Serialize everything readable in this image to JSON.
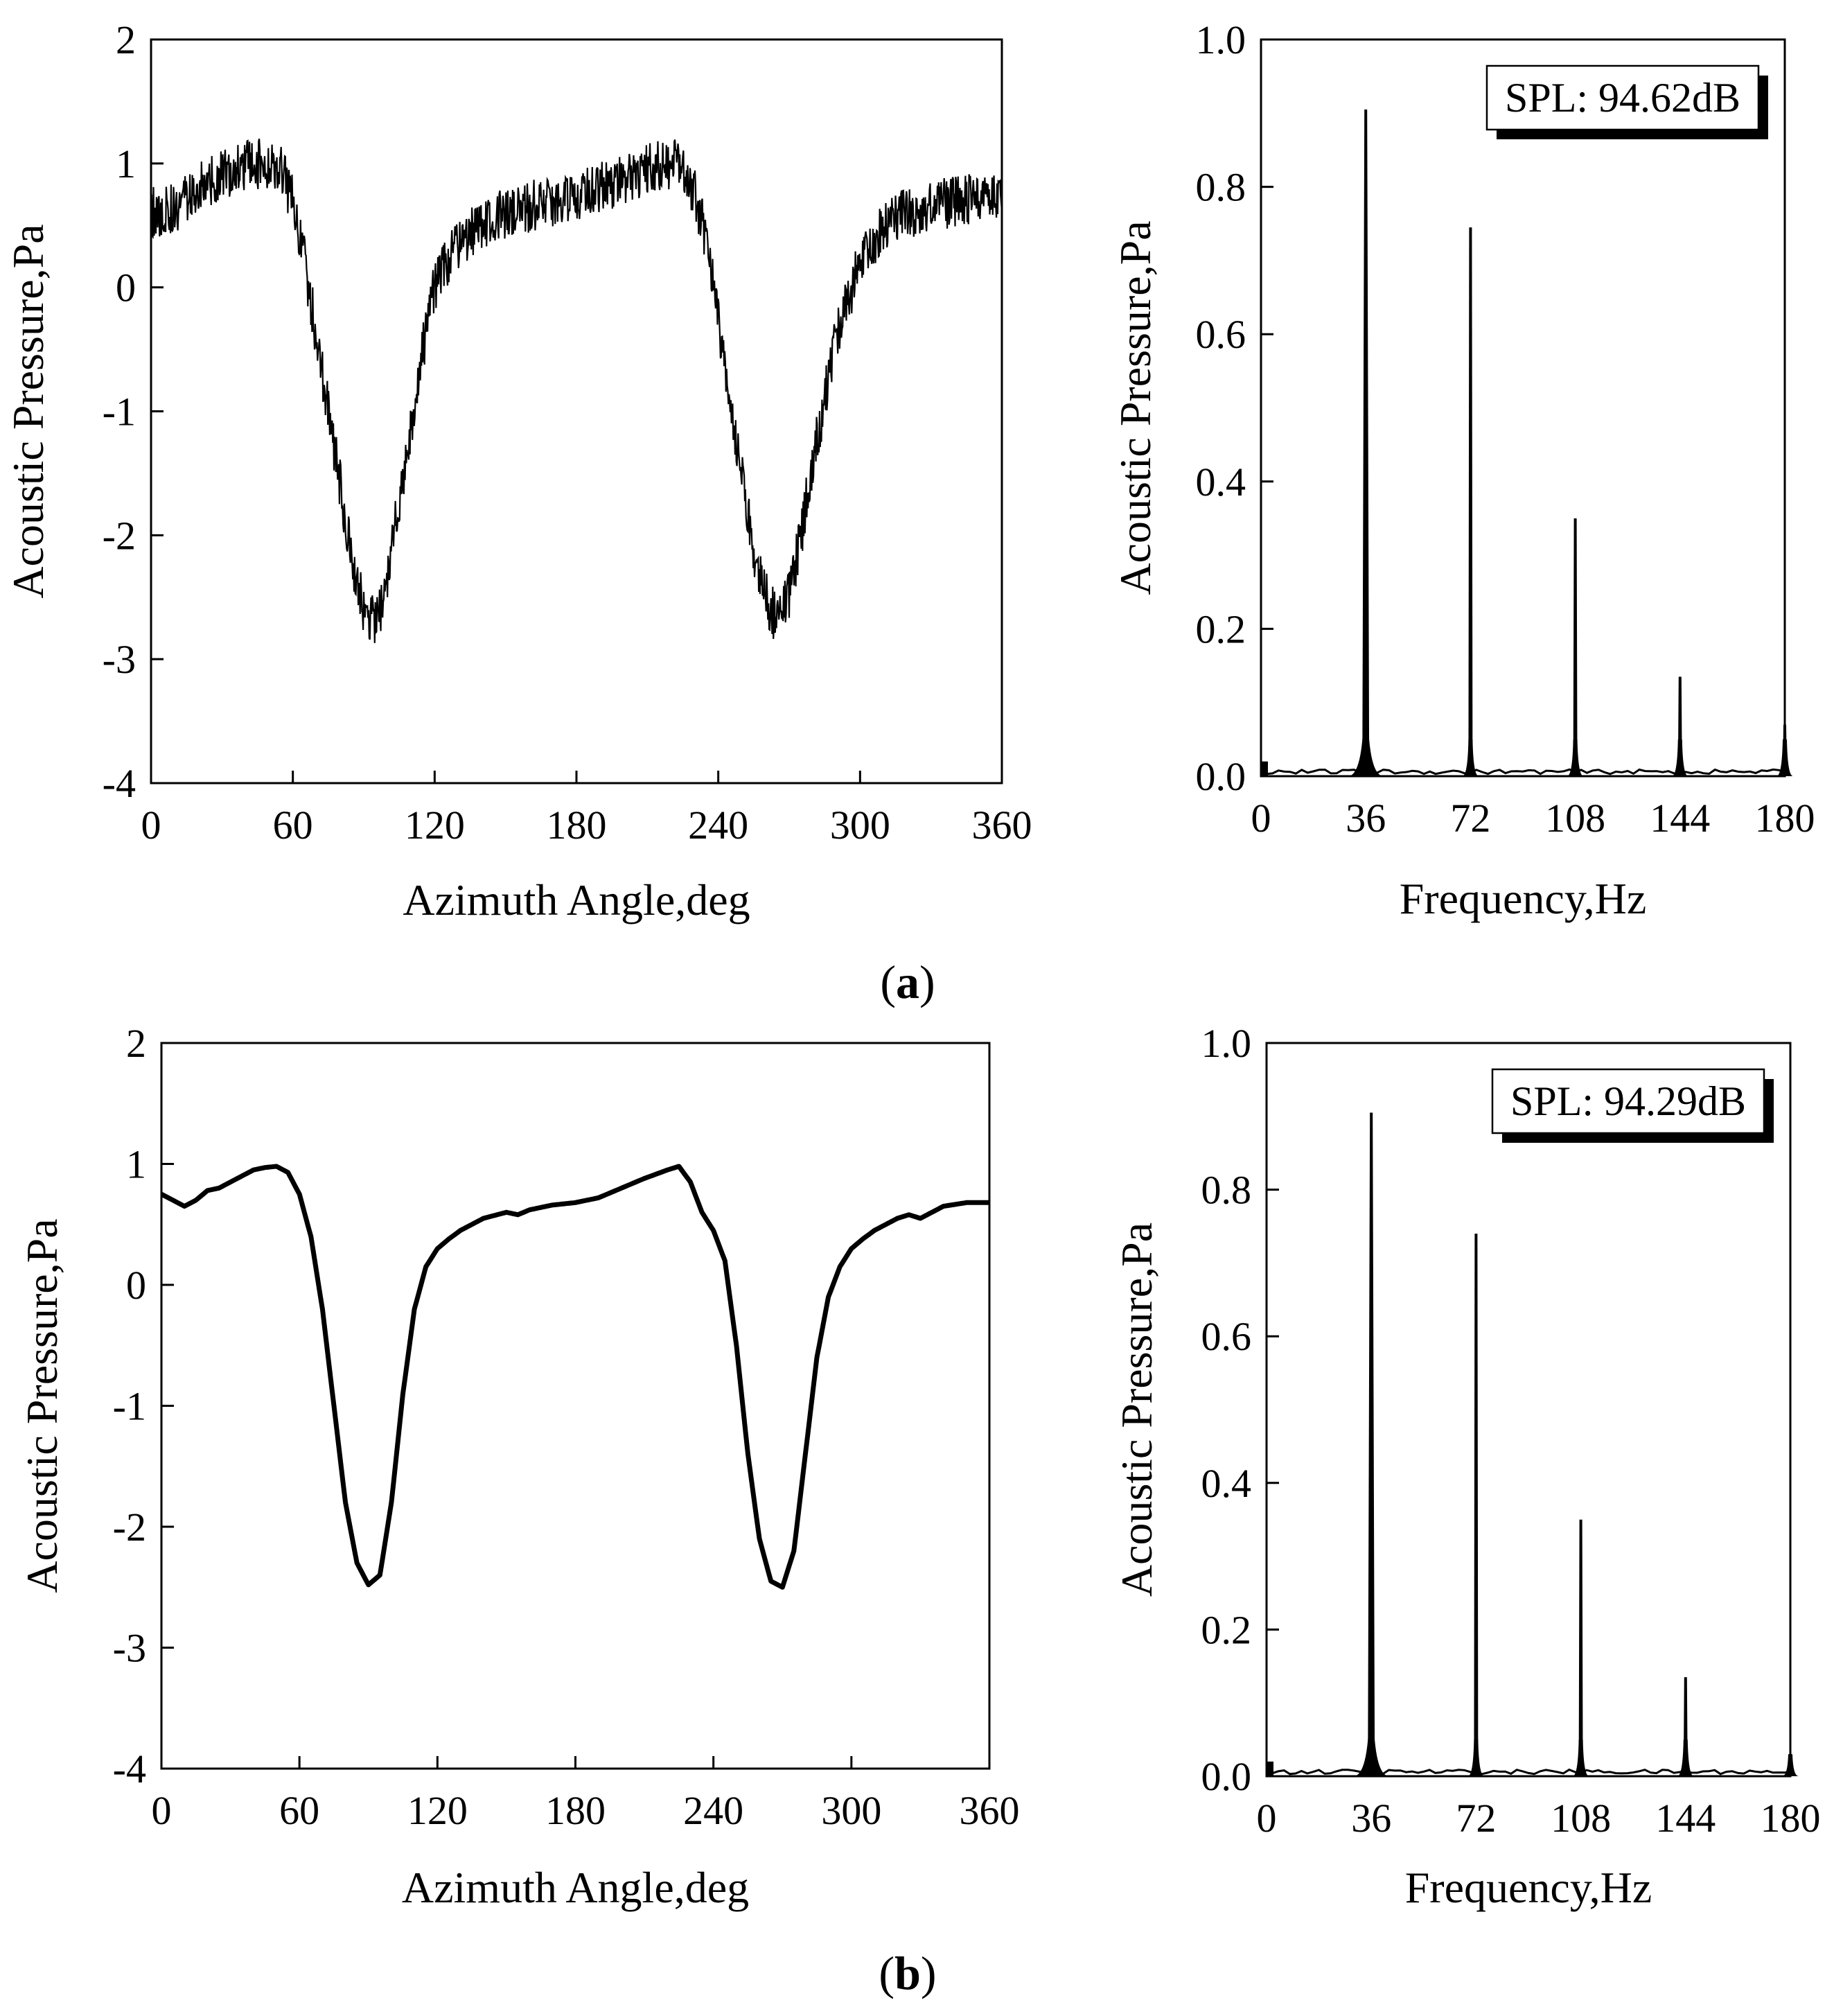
{
  "figure": {
    "panel_labels": [
      {
        "open": "(",
        "letter": "a",
        "close": ")"
      },
      {
        "open": "(",
        "letter": "b",
        "close": ")"
      }
    ]
  },
  "chart_data": [
    {
      "id": "a-time",
      "type": "line",
      "title": "",
      "xlabel": "Azimuth Angle,deg",
      "ylabel": "Acoustic Pressure,Pa",
      "xlim": [
        0,
        360
      ],
      "ylim": [
        -4,
        2
      ],
      "xticks": [
        0,
        60,
        120,
        180,
        240,
        300,
        360
      ],
      "yticks": [
        -4,
        -3,
        -2,
        -1,
        0,
        1,
        2
      ],
      "x_tick_labels": [
        "0",
        "60",
        "120",
        "180",
        "240",
        "300",
        "360"
      ],
      "y_tick_labels": [
        "-4",
        "-3",
        "-2",
        "-1",
        "0",
        "1",
        "2"
      ],
      "grid": false,
      "noisy": true,
      "series": [
        {
          "name": "acoustic pressure",
          "x": [
            0,
            5,
            10,
            15,
            20,
            25,
            30,
            35,
            40,
            45,
            50,
            55,
            60,
            65,
            70,
            75,
            80,
            85,
            90,
            95,
            100,
            105,
            110,
            115,
            120,
            125,
            130,
            140,
            150,
            160,
            170,
            180,
            190,
            200,
            210,
            220,
            225,
            230,
            235,
            240,
            245,
            250,
            255,
            260,
            265,
            270,
            275,
            280,
            285,
            290,
            295,
            300,
            305,
            310,
            320,
            330,
            340,
            350,
            360
          ],
          "values": [
            0.6,
            0.62,
            0.65,
            0.72,
            0.8,
            0.85,
            0.9,
            0.95,
            1.0,
            1.0,
            1.0,
            0.95,
            0.7,
            0.2,
            -0.4,
            -1.0,
            -1.6,
            -2.2,
            -2.6,
            -2.7,
            -2.4,
            -1.7,
            -1.1,
            -0.5,
            0.0,
            0.2,
            0.35,
            0.5,
            0.6,
            0.65,
            0.7,
            0.75,
            0.8,
            0.88,
            0.95,
            1.0,
            0.95,
            0.75,
            0.4,
            -0.3,
            -0.9,
            -1.5,
            -2.1,
            -2.5,
            -2.7,
            -2.5,
            -2.0,
            -1.4,
            -0.9,
            -0.4,
            -0.1,
            0.2,
            0.35,
            0.5,
            0.6,
            0.65,
            0.7,
            0.72,
            0.75
          ]
        }
      ]
    },
    {
      "id": "a-freq",
      "type": "line",
      "title": "",
      "xlabel": "Frequency,Hz",
      "ylabel": "Acoustic Pressure,Pa",
      "xlim": [
        0,
        180
      ],
      "ylim": [
        0,
        1.0
      ],
      "xticks": [
        0,
        36,
        72,
        108,
        144,
        180
      ],
      "yticks": [
        0.0,
        0.2,
        0.4,
        0.6,
        0.8,
        1.0
      ],
      "x_tick_labels": [
        "0",
        "36",
        "72",
        "108",
        144,
        "180"
      ],
      "y_tick_labels": [
        "0.0",
        "0.2",
        "0.4",
        "0.6",
        "0.8",
        "1.0"
      ],
      "grid": false,
      "annotation": {
        "text": "SPL: 94.62dB",
        "position": "top-right"
      },
      "peaks": [
        {
          "x": 36,
          "value": 0.905,
          "wide": true
        },
        {
          "x": 72,
          "value": 0.745,
          "wide": false
        },
        {
          "x": 108,
          "value": 0.35,
          "wide": false
        },
        {
          "x": 144,
          "value": 0.135,
          "wide": false
        },
        {
          "x": 180,
          "value": 0.07,
          "wide": false
        }
      ]
    },
    {
      "id": "b-time",
      "type": "line",
      "title": "",
      "xlabel": "Azimuth Angle,deg",
      "ylabel": "Acoustic Pressure,Pa",
      "xlim": [
        0,
        360
      ],
      "ylim": [
        -4,
        2
      ],
      "xticks": [
        0,
        60,
        120,
        180,
        240,
        300,
        360
      ],
      "yticks": [
        -4,
        -3,
        -2,
        -1,
        0,
        1,
        2
      ],
      "x_tick_labels": [
        "0",
        "60",
        "120",
        "180",
        "240",
        "300",
        "360"
      ],
      "y_tick_labels": [
        "-4",
        "-3",
        "-2",
        "-1",
        "0",
        "1",
        "2"
      ],
      "grid": false,
      "noisy": false,
      "series": [
        {
          "name": "acoustic pressure",
          "x": [
            0,
            5,
            10,
            15,
            20,
            25,
            30,
            35,
            40,
            45,
            50,
            55,
            60,
            65,
            70,
            75,
            80,
            85,
            90,
            95,
            100,
            105,
            110,
            115,
            120,
            125,
            130,
            140,
            150,
            155,
            160,
            170,
            180,
            190,
            200,
            210,
            220,
            225,
            230,
            235,
            240,
            245,
            250,
            255,
            260,
            265,
            270,
            275,
            280,
            285,
            290,
            295,
            300,
            305,
            310,
            320,
            325,
            330,
            335,
            340,
            350,
            360
          ],
          "values": [
            0.75,
            0.7,
            0.65,
            0.7,
            0.78,
            0.8,
            0.85,
            0.9,
            0.95,
            0.97,
            0.98,
            0.93,
            0.75,
            0.4,
            -0.2,
            -1.0,
            -1.8,
            -2.3,
            -2.48,
            -2.4,
            -1.8,
            -0.9,
            -0.2,
            0.15,
            0.3,
            0.38,
            0.45,
            0.55,
            0.6,
            0.58,
            0.62,
            0.66,
            0.68,
            0.72,
            0.8,
            0.88,
            0.95,
            0.98,
            0.85,
            0.6,
            0.45,
            0.2,
            -0.5,
            -1.4,
            -2.1,
            -2.45,
            -2.5,
            -2.2,
            -1.4,
            -0.6,
            -0.1,
            0.15,
            0.3,
            0.38,
            0.45,
            0.55,
            0.58,
            0.55,
            0.6,
            0.65,
            0.68,
            0.68
          ]
        }
      ]
    },
    {
      "id": "b-freq",
      "type": "line",
      "title": "",
      "xlabel": "Frequency,Hz",
      "ylabel": "Acoustic Pressure,Pa",
      "xlim": [
        0,
        180
      ],
      "ylim": [
        0,
        1.0
      ],
      "xticks": [
        0,
        36,
        72,
        108,
        144,
        180
      ],
      "yticks": [
        0.0,
        0.2,
        0.4,
        0.6,
        0.8,
        1.0
      ],
      "x_tick_labels": [
        "0",
        "36",
        "72",
        "108",
        "144",
        "180"
      ],
      "y_tick_labels": [
        "0.0",
        "0.2",
        "0.4",
        "0.6",
        "0.8",
        "1.0"
      ],
      "grid": false,
      "annotation": {
        "text": "SPL: 94.29dB",
        "position": "top-right"
      },
      "peaks": [
        {
          "x": 36,
          "value": 0.905,
          "wide": true
        },
        {
          "x": 72,
          "value": 0.74,
          "wide": false
        },
        {
          "x": 108,
          "value": 0.35,
          "wide": false
        },
        {
          "x": 144,
          "value": 0.135,
          "wide": false
        },
        {
          "x": 180,
          "value": 0.03,
          "wide": false
        }
      ]
    }
  ]
}
